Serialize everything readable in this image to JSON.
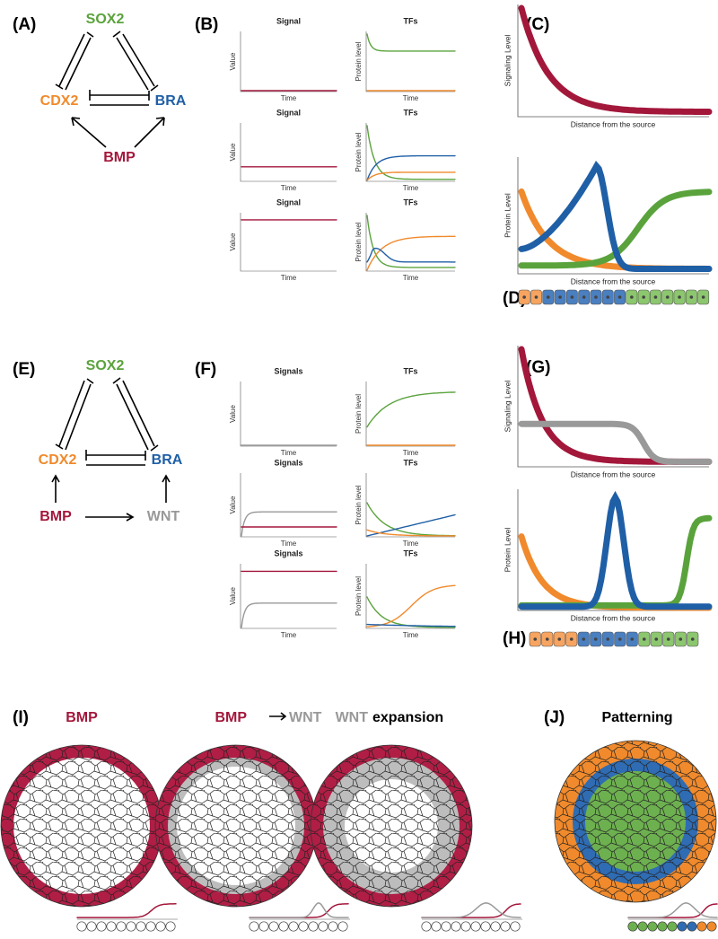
{
  "A": {
    "label": "(A)",
    "nodes": {
      "sox2": "SOX2",
      "cdx2": "CDX2",
      "bra": "BRA",
      "bmp": "BMP"
    }
  },
  "B": {
    "label": "(B)",
    "plots": [
      {
        "title": "Signal",
        "y_label": "Value",
        "x_label": "Time"
      },
      {
        "title": "TFs",
        "y_label": "Protein level",
        "x_label": "Time"
      },
      {
        "title": "Signal",
        "y_label": "Value",
        "x_label": "Time"
      },
      {
        "title": "TFs",
        "y_label": "Protein level",
        "x_label": "Time"
      },
      {
        "title": "Signal",
        "y_label": "Value",
        "x_label": "Time"
      },
      {
        "title": "TFs",
        "y_label": "Protein level",
        "x_label": "Time"
      }
    ]
  },
  "C": {
    "label": "(C)",
    "top": {
      "y_label": "Signaling Level",
      "x_label": "Distance from the source"
    },
    "bottom": {
      "y_label": "Protein Level",
      "x_label": "Distance from the source"
    }
  },
  "D": {
    "label": "(D)"
  },
  "E": {
    "label": "(E)",
    "nodes": {
      "sox2": "SOX2",
      "cdx2": "CDX2",
      "bra": "BRA",
      "bmp": "BMP",
      "wnt": "WNT"
    }
  },
  "F": {
    "label": "(F)",
    "plots": [
      {
        "title": "Signals",
        "y_label": "Value",
        "x_label": "Time"
      },
      {
        "title": "TFs",
        "y_label": "Protein level",
        "x_label": "Time"
      },
      {
        "title": "Signals",
        "y_label": "Value",
        "x_label": "Time"
      },
      {
        "title": "TFs",
        "y_label": "Protein level",
        "x_label": "Time"
      },
      {
        "title": "Signals",
        "y_label": "Value",
        "x_label": "Time"
      },
      {
        "title": "TFs",
        "y_label": "Protein level",
        "x_label": "Time"
      }
    ]
  },
  "G": {
    "label": "(G)",
    "top": {
      "y_label": "Signaling Level",
      "x_label": "Distance from the source"
    },
    "bottom": {
      "y_label": "Protein Level",
      "x_label": "Distance from the source"
    }
  },
  "H": {
    "label": "(H)"
  },
  "I": {
    "label": "(I)",
    "titles": [
      {
        "first": "BMP"
      },
      {
        "first": "BMP",
        "second": "WNT"
      },
      {
        "first": "WNT",
        "second": "expansion"
      }
    ]
  },
  "J": {
    "label": "(J)",
    "title": "Patterning"
  }
}
